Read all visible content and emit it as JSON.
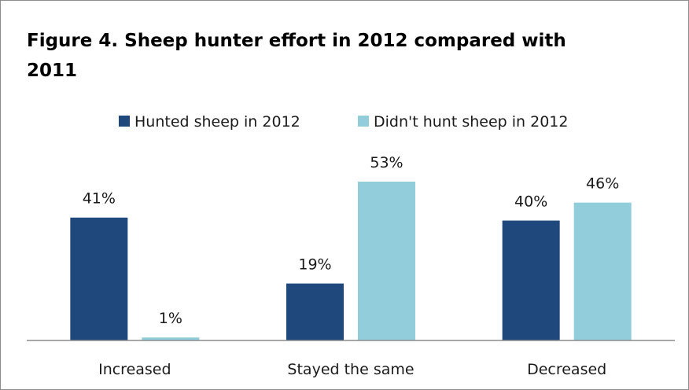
{
  "chart_data": {
    "type": "bar",
    "title": "Figure 4. Sheep hunter effort in 2012 compared with 2011",
    "categories": [
      "Increased",
      "Stayed the same",
      "Decreased"
    ],
    "series": [
      {
        "name": "Hunted sheep in 2012",
        "values": [
          41,
          19,
          40
        ],
        "labels": [
          "41%",
          "19%",
          "40%"
        ],
        "color": "#1f497d"
      },
      {
        "name": "Didn't hunt sheep in 2012",
        "values": [
          1,
          53,
          46
        ],
        "labels": [
          "1%",
          "53%",
          "46%"
        ],
        "color": "#92cddc"
      }
    ],
    "value_unit": "%",
    "ylim": [
      0,
      60
    ],
    "grid": false,
    "legend_position": "top"
  }
}
